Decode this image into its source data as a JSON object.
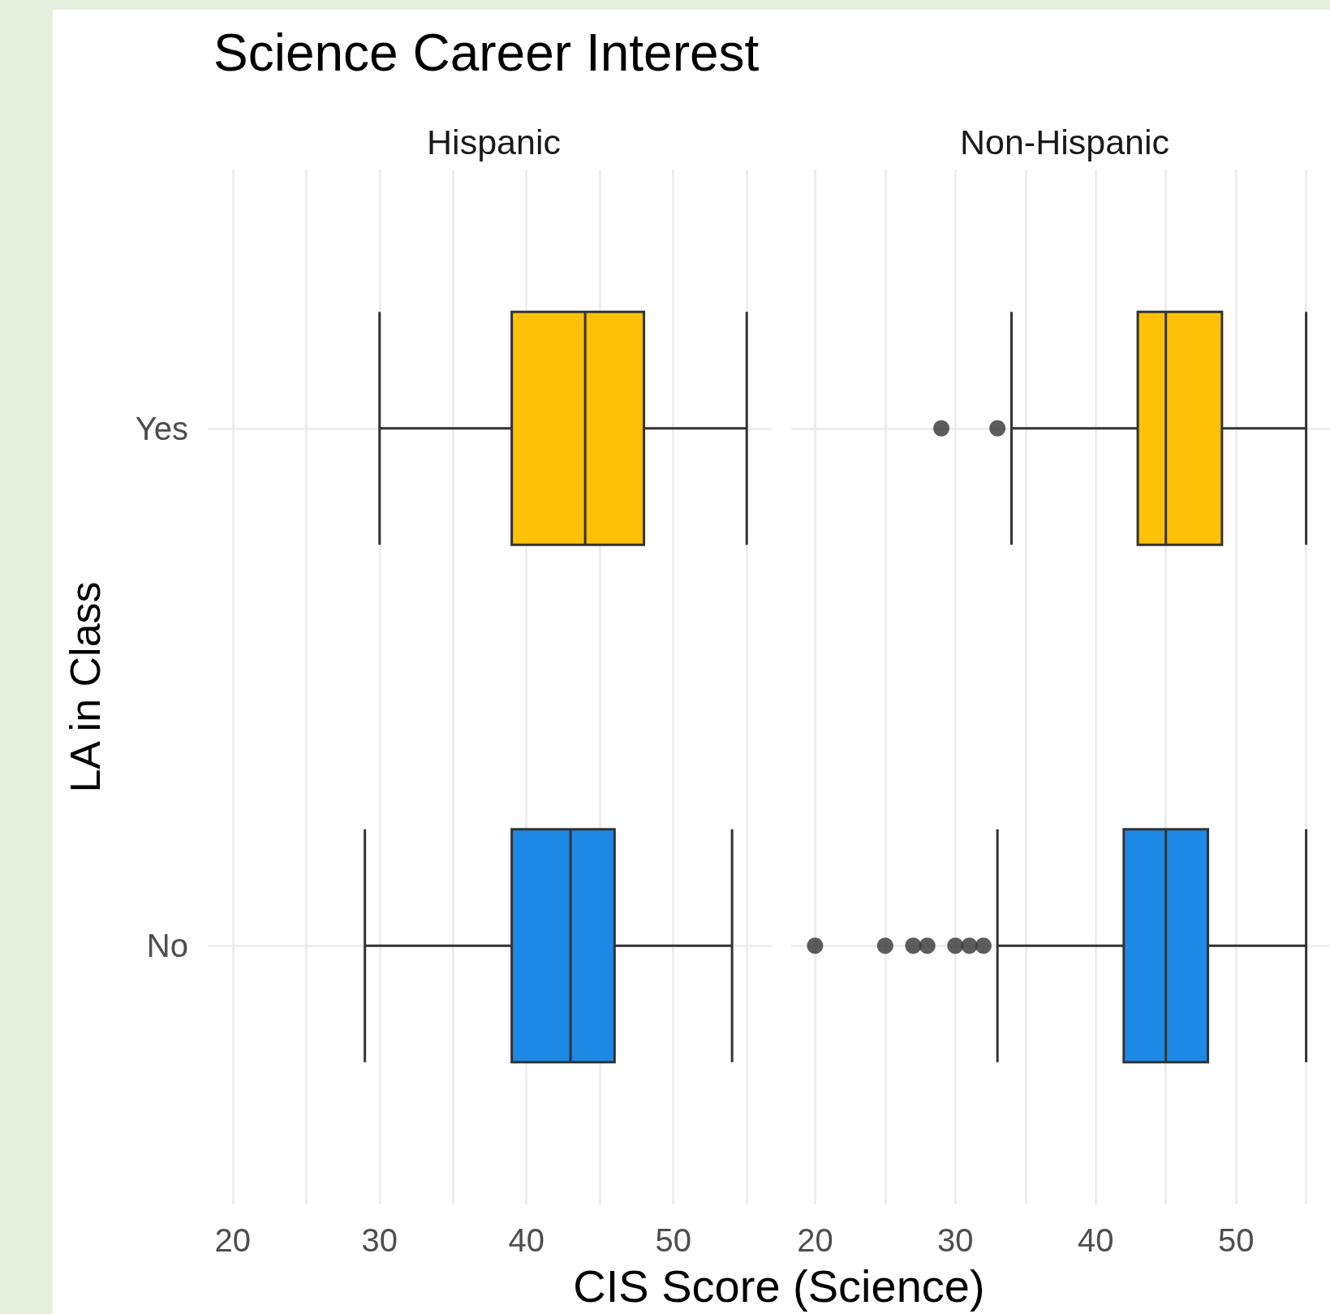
{
  "chart_data": [
    {
      "type": "box",
      "title": "Science Career Interest",
      "subtitle": "Hispanic",
      "ylabel": "LA in Class",
      "categories": [
        "Yes",
        "No"
      ],
      "orientation": "horizontal",
      "colors": [
        "#ffc107",
        "#1e88e5"
      ],
      "boxes": [
        {
          "low": 30,
          "q1": 39,
          "median": 44,
          "q3": 48,
          "high": 55
        },
        {
          "low": 29,
          "q1": 39,
          "median": 43,
          "q3": 46,
          "high": 54
        }
      ],
      "xlim": [
        18.3,
        56.7
      ],
      "xticks": [
        20,
        30,
        40,
        50
      ],
      "grid": true
    },
    {
      "type": "box",
      "subtitle": "Non-Hispanic",
      "xlabel": "CIS Score (Science)",
      "orientation": "horizontal",
      "colors": [
        "#ffc107",
        "#1e88e5"
      ],
      "boxes": [
        {
          "low": 34,
          "q1": 43,
          "median": 45,
          "q3": 49,
          "high": 55,
          "outliers": [
            29,
            33
          ]
        },
        {
          "low": 33,
          "q1": 42,
          "median": 45,
          "q3": 48,
          "high": 55,
          "outliers": [
            20,
            25,
            27,
            28,
            30,
            31,
            32
          ]
        }
      ],
      "xlim": [
        18.3,
        56.7
      ],
      "xticks": [
        20,
        30,
        40,
        50
      ],
      "grid": true,
      "tick_labels": "x"
    }
  ]
}
